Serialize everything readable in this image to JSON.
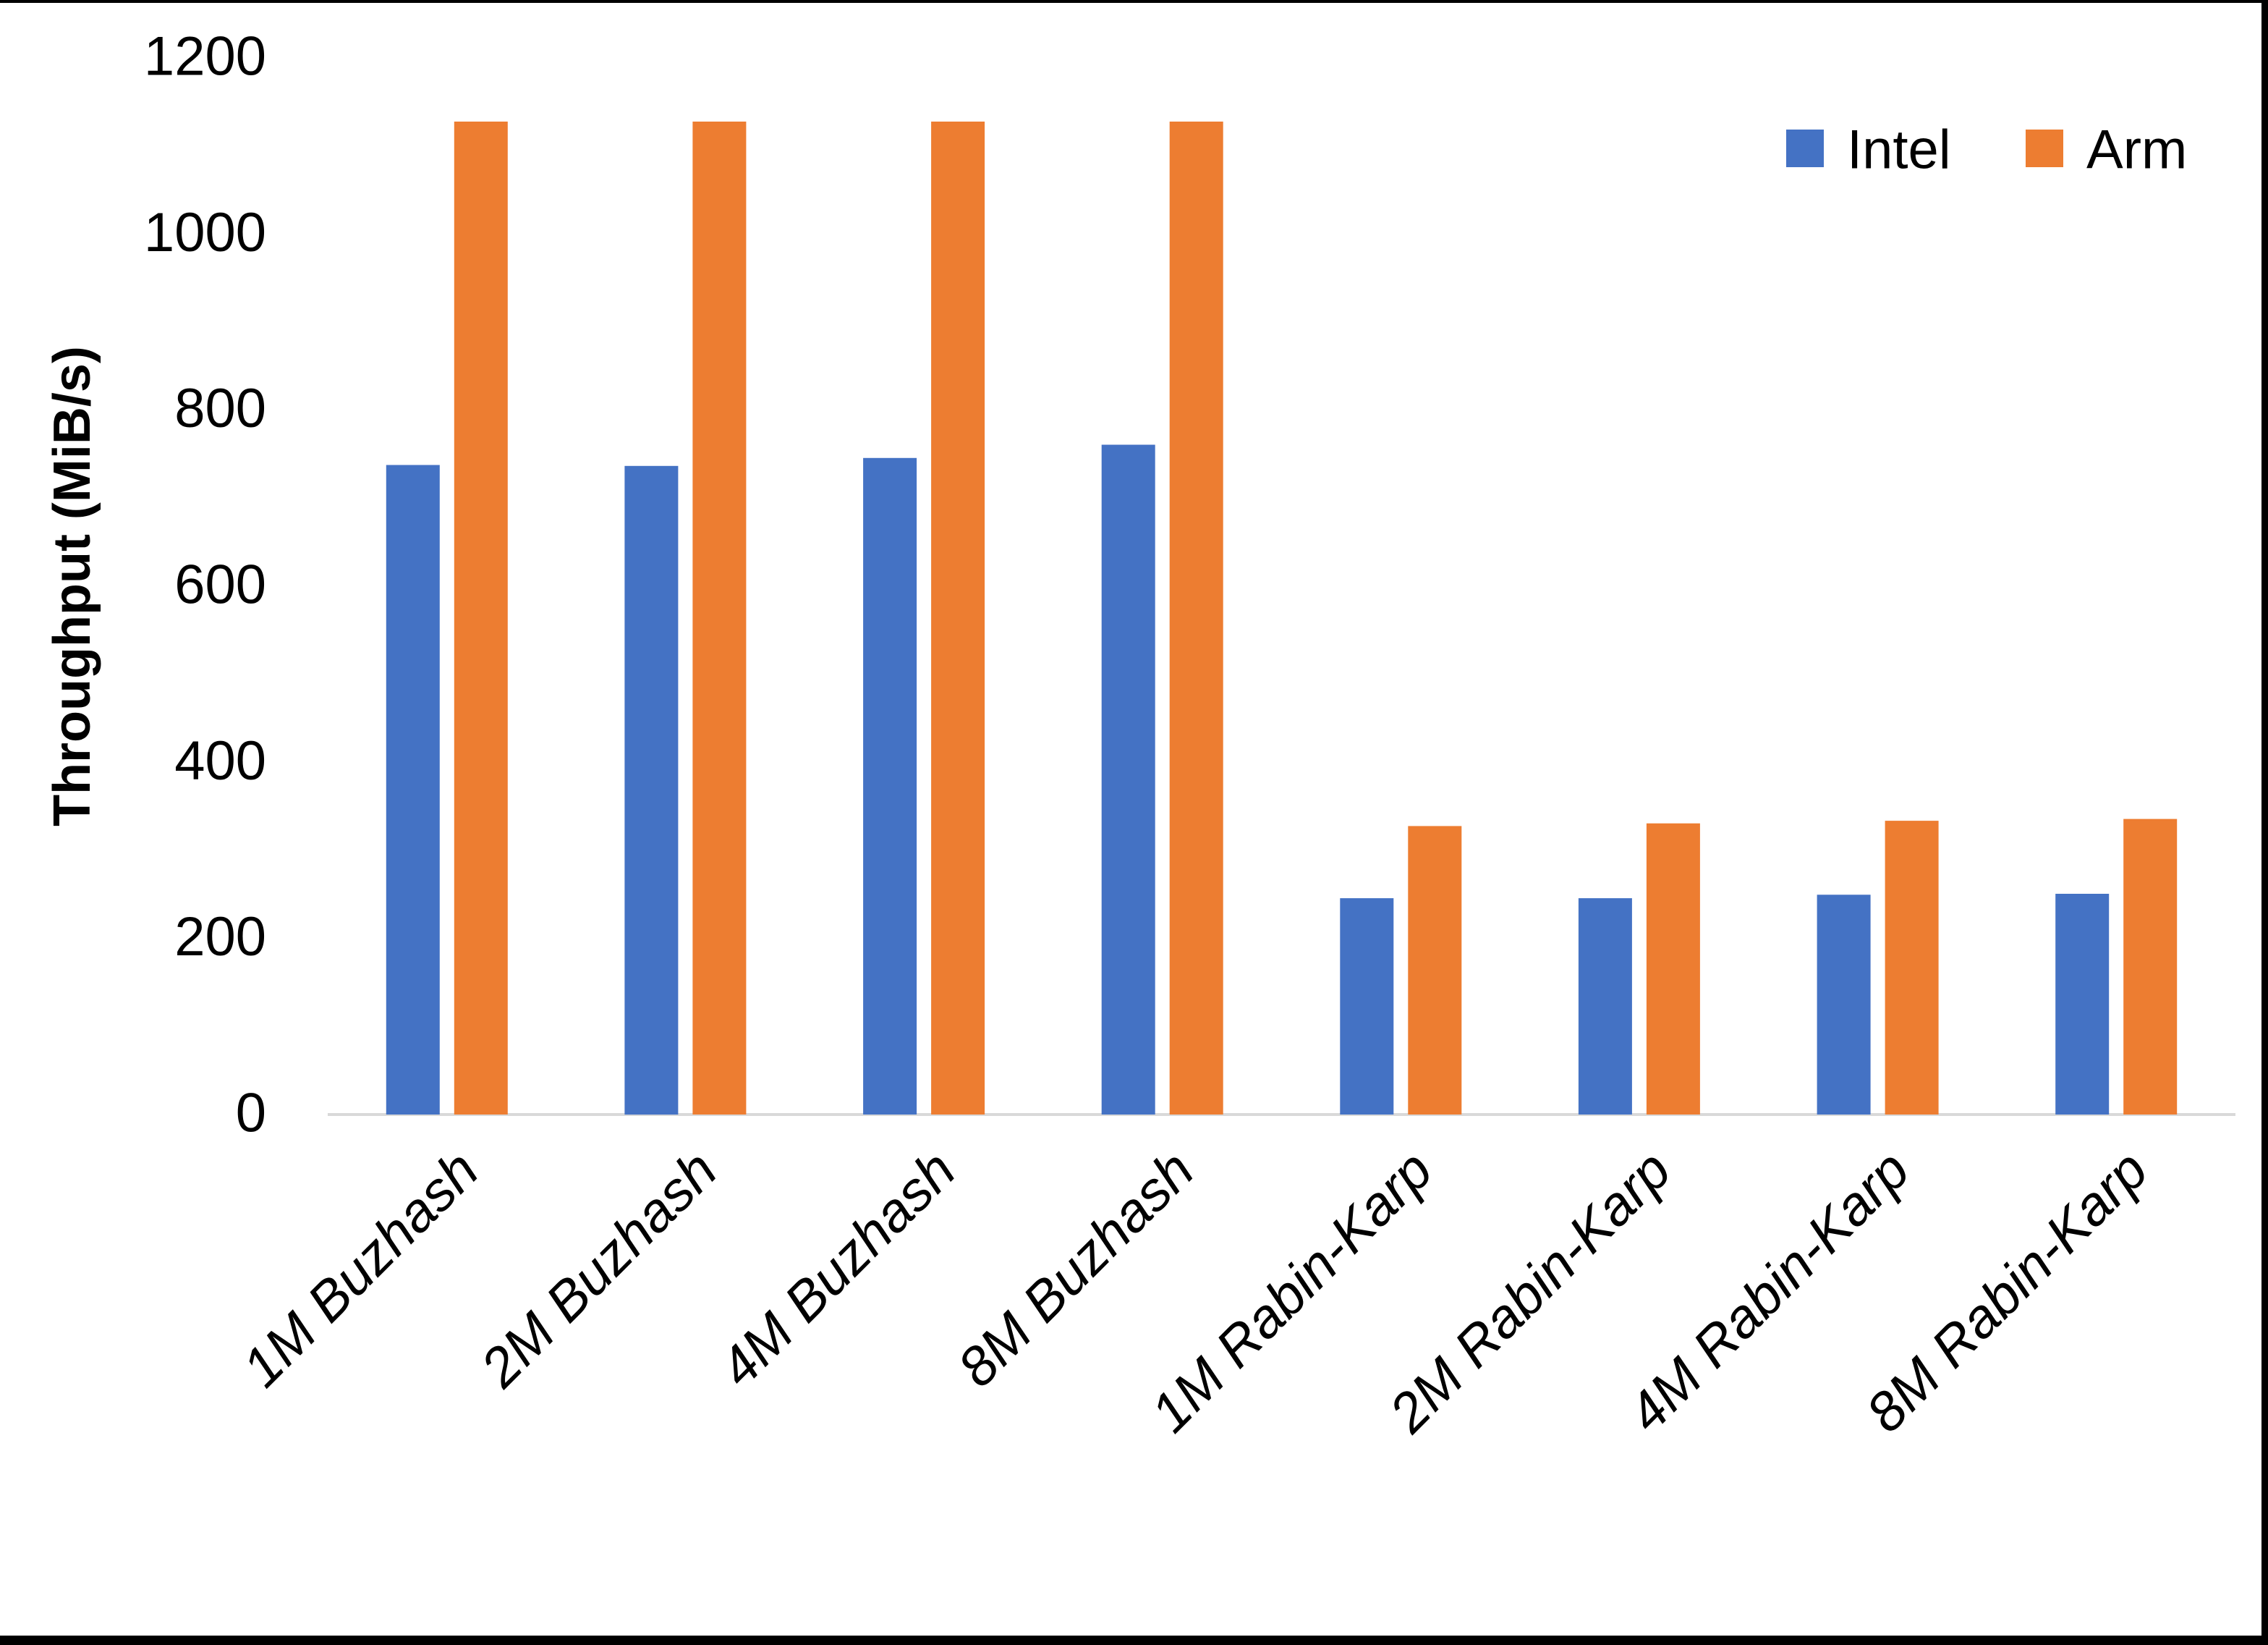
{
  "chart_data": {
    "type": "bar",
    "title": "",
    "ylabel": "Throughput (MiB/s)",
    "xlabel": "",
    "categories": [
      "1M Buzhash",
      "2M Buzhash",
      "4M Buzhash",
      "8M Buzhash",
      "1M Rabin-Karp",
      "2M Rabin-Karp",
      "4M Rabin-Karp",
      "8M Rabin-Karp"
    ],
    "series": [
      {
        "name": "Intel",
        "color": "#4472C4",
        "values": [
          736,
          735,
          744,
          759,
          244,
          244,
          248,
          249
        ]
      },
      {
        "name": "Arm",
        "color": "#ED7D31",
        "values": [
          1126,
          1126,
          1126,
          1126,
          326,
          329,
          332,
          334
        ]
      }
    ],
    "y_axis": {
      "min": 0,
      "max": 1200,
      "step": 200,
      "tick_labels": [
        "0",
        "200",
        "400",
        "600",
        "800",
        "1000",
        "1200"
      ]
    },
    "legend": {
      "position": "top-right",
      "entries": [
        "Intel",
        "Arm"
      ]
    },
    "grid": false
  },
  "style": {
    "background": "#FFFFFF",
    "axis_line_color": "#D9D9D9",
    "frame_color": "#000000",
    "text_color": "#000000"
  }
}
